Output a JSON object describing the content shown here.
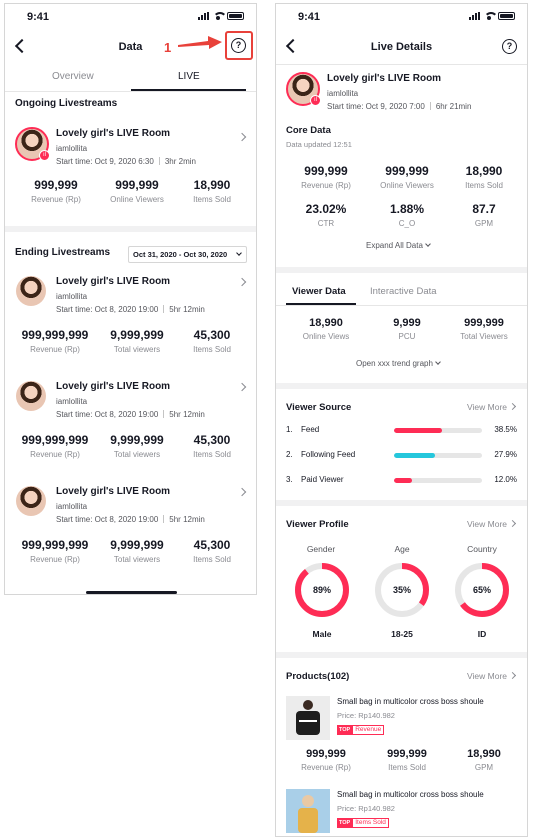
{
  "status_time": "9:41",
  "left": {
    "title": "Data",
    "tabs": [
      "Overview",
      "LIVE"
    ],
    "ongoing_title": "Ongoing Livestreams",
    "ongoing": {
      "title": "Lovely girl's LIVE Room",
      "user": "iamlollita",
      "start": "Start time: Oct 9, 2020 6:30",
      "duration": "3hr 2min",
      "stats": [
        {
          "value": "999,999",
          "label": "Revenue (Rp)"
        },
        {
          "value": "999,999",
          "label": "Online Viewers"
        },
        {
          "value": "18,990",
          "label": "Items Sold"
        }
      ]
    },
    "ending_title": "Ending Livestreams",
    "date_range": "Oct 31, 2020 - Oct 30, 2020",
    "ending": [
      {
        "title": "Lovely girl's LIVE Room",
        "user": "iamlollita",
        "start": "Start time: Oct 8, 2020 19:00",
        "duration": "5hr 12min",
        "stats": [
          {
            "value": "999,999,999",
            "label": "Revenue (Rp)"
          },
          {
            "value": "9,999,999",
            "label": "Total viewers"
          },
          {
            "value": "45,300",
            "label": "Items Sold"
          }
        ]
      },
      {
        "title": "Lovely girl's LIVE Room",
        "user": "iamlollita",
        "start": "Start time: Oct 8, 2020 19:00",
        "duration": "5hr 12min",
        "stats": [
          {
            "value": "999,999,999",
            "label": "Revenue (Rp)"
          },
          {
            "value": "9,999,999",
            "label": "Total viewers"
          },
          {
            "value": "45,300",
            "label": "Items Sold"
          }
        ]
      },
      {
        "title": "Lovely girl's LIVE Room",
        "user": "iamlollita",
        "start": "Start time: Oct 8, 2020 19:00",
        "duration": "5hr 12min",
        "stats": [
          {
            "value": "999,999,999",
            "label": "Revenue (Rp)"
          },
          {
            "value": "9,999,999",
            "label": "Total viewers"
          },
          {
            "value": "45,300",
            "label": "Items Sold"
          }
        ]
      }
    ],
    "annotation_number": "1"
  },
  "right": {
    "title": "Live Details",
    "header": {
      "title": "Lovely girl's LIVE Room",
      "user": "iamlollita",
      "start": "Start time: Oct 9, 2020 7:00",
      "duration": "6hr 21min"
    },
    "core_title": "Core Data",
    "core_updated": "Data updated 12:51",
    "core_stats": [
      {
        "value": "999,999",
        "label": "Revenue (Rp)"
      },
      {
        "value": "999,999",
        "label": "Online Viewers"
      },
      {
        "value": "18,990",
        "label": "Items Sold"
      },
      {
        "value": "23.02%",
        "label": "CTR"
      },
      {
        "value": "1.88%",
        "label": "C_O"
      },
      {
        "value": "87.7",
        "label": "GPM"
      }
    ],
    "expand_label": "Expand All Data",
    "viewer_tabs": [
      "Viewer Data",
      "Interactive Data"
    ],
    "viewer_stats": [
      {
        "value": "18,990",
        "label": "Online Views"
      },
      {
        "value": "9,999",
        "label": "PCU"
      },
      {
        "value": "999,999",
        "label": "Total Viewers"
      }
    ],
    "trend_label": "Open xxx trend graph",
    "view_more": "View More",
    "source_title": "Viewer Source",
    "sources": [
      {
        "num": "1.",
        "name": "Feed",
        "pct": "38.5%",
        "share": 0.54,
        "color": "#fe2c55"
      },
      {
        "num": "2.",
        "name": "Following Feed",
        "pct": "27.9%",
        "share": 0.47,
        "color": "#25c7dc"
      },
      {
        "num": "3.",
        "name": "Paid Viewer",
        "pct": "12.0%",
        "share": 0.2,
        "color": "#fe2c55"
      }
    ],
    "profile_title": "Viewer Profile",
    "profile": [
      {
        "label": "Gender",
        "pct": "89%",
        "fraction": 0.89,
        "sub": "Male"
      },
      {
        "label": "Age",
        "pct": "35%",
        "fraction": 0.35,
        "sub": "18-25"
      },
      {
        "label": "Country",
        "pct": "65%",
        "fraction": 0.65,
        "sub": "ID"
      }
    ],
    "products_title": "Products(102)",
    "products": [
      {
        "title": "Small bag in multicolor cross boss shoule",
        "price": "Price: Rp140.982",
        "badge_top": "TOP",
        "badge": "Revenue",
        "stats": [
          {
            "value": "999,999",
            "label": "Revenue (Rp)"
          },
          {
            "value": "999,999",
            "label": "Items Sold"
          },
          {
            "value": "18,990",
            "label": "GPM"
          }
        ]
      },
      {
        "title": "Small bag in multicolor cross boss shoule",
        "price": "Price: Rp140.982",
        "badge_top": "TOP",
        "badge": "Items Sold"
      }
    ]
  },
  "colors": {
    "accent": "#fe2c55",
    "cyan": "#25c7dc",
    "annotation": "#e8413a"
  }
}
